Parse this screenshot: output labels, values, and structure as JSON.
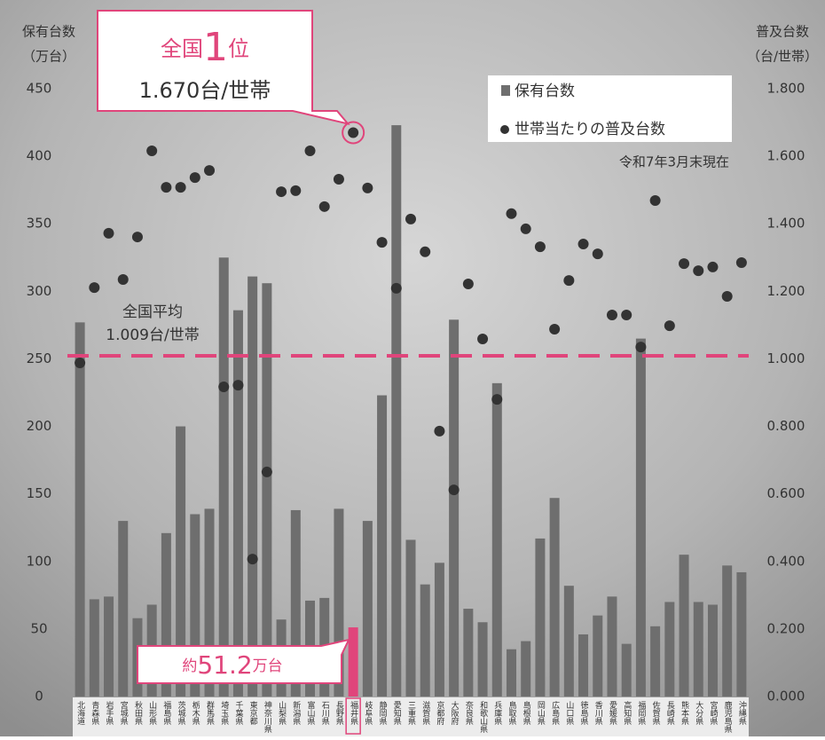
{
  "chart_data": {
    "type": "bar+scatter",
    "y_title": [
      "保有台数",
      "（万台）"
    ],
    "y2_title": [
      "普及台数",
      "（台/世帯）"
    ],
    "note": "令和7年3月末現在",
    "categories": [
      "北海道",
      "青森県",
      "岩手県",
      "宮城県",
      "秋田県",
      "山形県",
      "福島県",
      "茨城県",
      "栃木県",
      "群馬県",
      "埼玉県",
      "千葉県",
      "東京都",
      "神奈川県",
      "山梨県",
      "新潟県",
      "富山県",
      "石川県",
      "長野県",
      "福井県",
      "岐阜県",
      "静岡県",
      "愛知県",
      "三重県",
      "滋賀県",
      "京都府",
      "大阪府",
      "奈良県",
      "和歌山県",
      "兵庫県",
      "鳥取県",
      "島根県",
      "岡山県",
      "広島県",
      "山口県",
      "徳島県",
      "香川県",
      "愛媛県",
      "高知県",
      "福岡県",
      "佐賀県",
      "長崎県",
      "熊本県",
      "大分県",
      "宮崎県",
      "鹿児島県",
      "沖縄県"
    ],
    "series": [
      {
        "name": "保有台数",
        "type": "bar",
        "axis": "y",
        "color": "#6e6e6e",
        "values": [
          277,
          72,
          74,
          130,
          58,
          68,
          121,
          200,
          135,
          139,
          325,
          286,
          311,
          306,
          57,
          138,
          71,
          73,
          139,
          51.2,
          130,
          223,
          423,
          116,
          83,
          99,
          279,
          65,
          55,
          232,
          35,
          41,
          117,
          147,
          82,
          46,
          60,
          74,
          39,
          265,
          52,
          70,
          105,
          70,
          68,
          97,
          92
        ]
      },
      {
        "name": "世帯当たりの普及台数",
        "type": "scatter",
        "axis": "y2",
        "color": "#333333",
        "values": [
          0.988,
          1.211,
          1.372,
          1.235,
          1.361,
          1.616,
          1.508,
          1.508,
          1.537,
          1.558,
          0.917,
          0.922,
          0.407,
          0.665,
          1.495,
          1.498,
          1.616,
          1.451,
          1.532,
          1.67,
          1.506,
          1.345,
          1.209,
          1.414,
          1.317,
          0.786,
          0.612,
          1.222,
          1.059,
          0.88,
          1.43,
          1.385,
          1.332,
          1.088,
          1.232,
          1.34,
          1.311,
          1.13,
          1.13,
          1.035,
          1.469,
          1.098,
          1.282,
          1.261,
          1.272,
          1.185,
          1.285
        ]
      }
    ],
    "highlight": {
      "category": "福井県",
      "color": "#e0457b"
    },
    "ylim": [
      0,
      450
    ],
    "yticks": [
      0,
      50,
      100,
      150,
      200,
      250,
      300,
      350,
      400,
      450
    ],
    "y2lim": [
      0,
      1.8
    ],
    "y2ticks": [
      {
        "value": 0,
        "label": "0.000"
      },
      {
        "value": 0.2,
        "label": "0.200"
      },
      {
        "value": 0.4,
        "label": "0.400"
      },
      {
        "value": 0.6,
        "label": "0.600"
      },
      {
        "value": 0.8,
        "label": "0.800"
      },
      {
        "value": 1,
        "label": "1.000"
      },
      {
        "value": 1.2,
        "label": "1.200"
      },
      {
        "value": 1.4,
        "label": "1.400"
      },
      {
        "value": 1.6,
        "label": "1.600"
      },
      {
        "value": 1.8,
        "label": "1.800"
      }
    ],
    "reference_line": {
      "value": 1.009,
      "axis": "y2",
      "title": "全国平均",
      "label": "1.009台/世帯",
      "color": "#e0457b"
    },
    "callout_rank": {
      "parts": [
        "全国",
        "1",
        "位"
      ],
      "value": 1.67,
      "label": "1.670台/世帯"
    },
    "callout_bar": {
      "parts": [
        "約",
        "51.2",
        "万台"
      ],
      "value": 51.2
    }
  }
}
